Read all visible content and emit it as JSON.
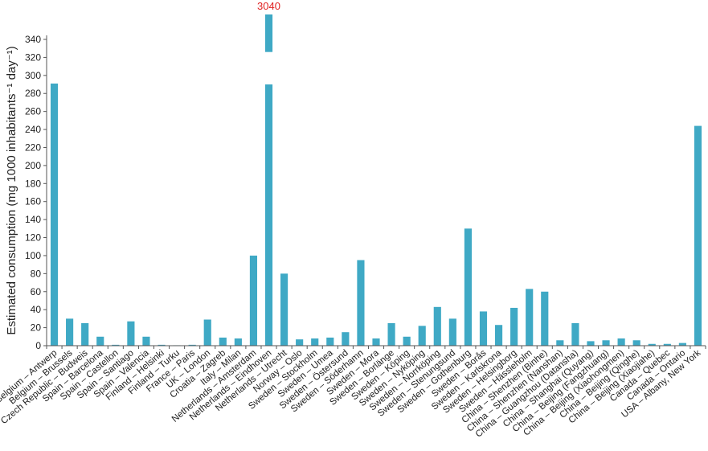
{
  "chart_data": {
    "type": "bar",
    "ylabel": "Estimated consumption (mg 1000 inhabitants⁻¹ day⁻¹)",
    "ylim": [
      0,
      340
    ],
    "ytick_step": 20,
    "grid": false,
    "bar_color": "#3fa9c5",
    "axis_color": "#555555",
    "break_value_color": "#e02020",
    "axis_break": {
      "lower_top": 290,
      "upper_range": [
        326,
        340
      ]
    },
    "categories": [
      "Belgium – Antwerp",
      "Belgium – Brussels",
      "Czech Republic – Budweis",
      "Spain – Barcelona",
      "Spain – Castellon",
      "Spain – Santiago",
      "Spain – Valencia",
      "Finland – Helsinki",
      "Finland – Turku",
      "France – Paris",
      "UK – London",
      "Croatia – Zagreb",
      "Italy – Milan",
      "Netherlands – Amsterdam",
      "Netherlands – Eindhoven",
      "Netherlands – Utrecht",
      "Norway – Oslo",
      "Sweden – Stockholm",
      "Sweden – Umea",
      "Sweden – Östersund",
      "Sweden – Söderhamn",
      "Sweden – Mora",
      "Sweden – Borlänge",
      "Sweden – Köping",
      "Sweden – Nyköping",
      "Sweden – Norrköping",
      "Sweden – Stenungsund",
      "Sweden – Gothenburg",
      "Sweden – Borås",
      "Sweden – Karlskrona",
      "Sweden – Helsingborg",
      "Sweden – Hässleholm",
      "China – Shenzhen (Binhe)",
      "China – Shenzhen (Nanshan)",
      "China – Guangzhou (Datansha)",
      "China – Shanghai (Quyang)",
      "China – Beijing (Fangzhuang)",
      "China – Beijing (Xiaohongmen)",
      "China – Beijing (Qinghe)",
      "China – Beijing (Xiaojiahe)",
      "Canada – Quebec",
      "Canada – Ontario",
      "USA – Albany, New York"
    ],
    "values": [
      291,
      30,
      25,
      10,
      1,
      27,
      10,
      1,
      0.5,
      1,
      29,
      9,
      8,
      100,
      3040,
      80,
      7,
      8,
      9,
      15,
      95,
      8,
      25,
      10,
      22,
      43,
      30,
      130,
      38,
      23,
      42,
      63,
      60,
      6,
      25,
      5,
      6,
      8,
      6,
      2,
      2,
      3,
      244
    ],
    "data_labels": [
      {
        "index": 14,
        "text": "3040"
      }
    ]
  }
}
